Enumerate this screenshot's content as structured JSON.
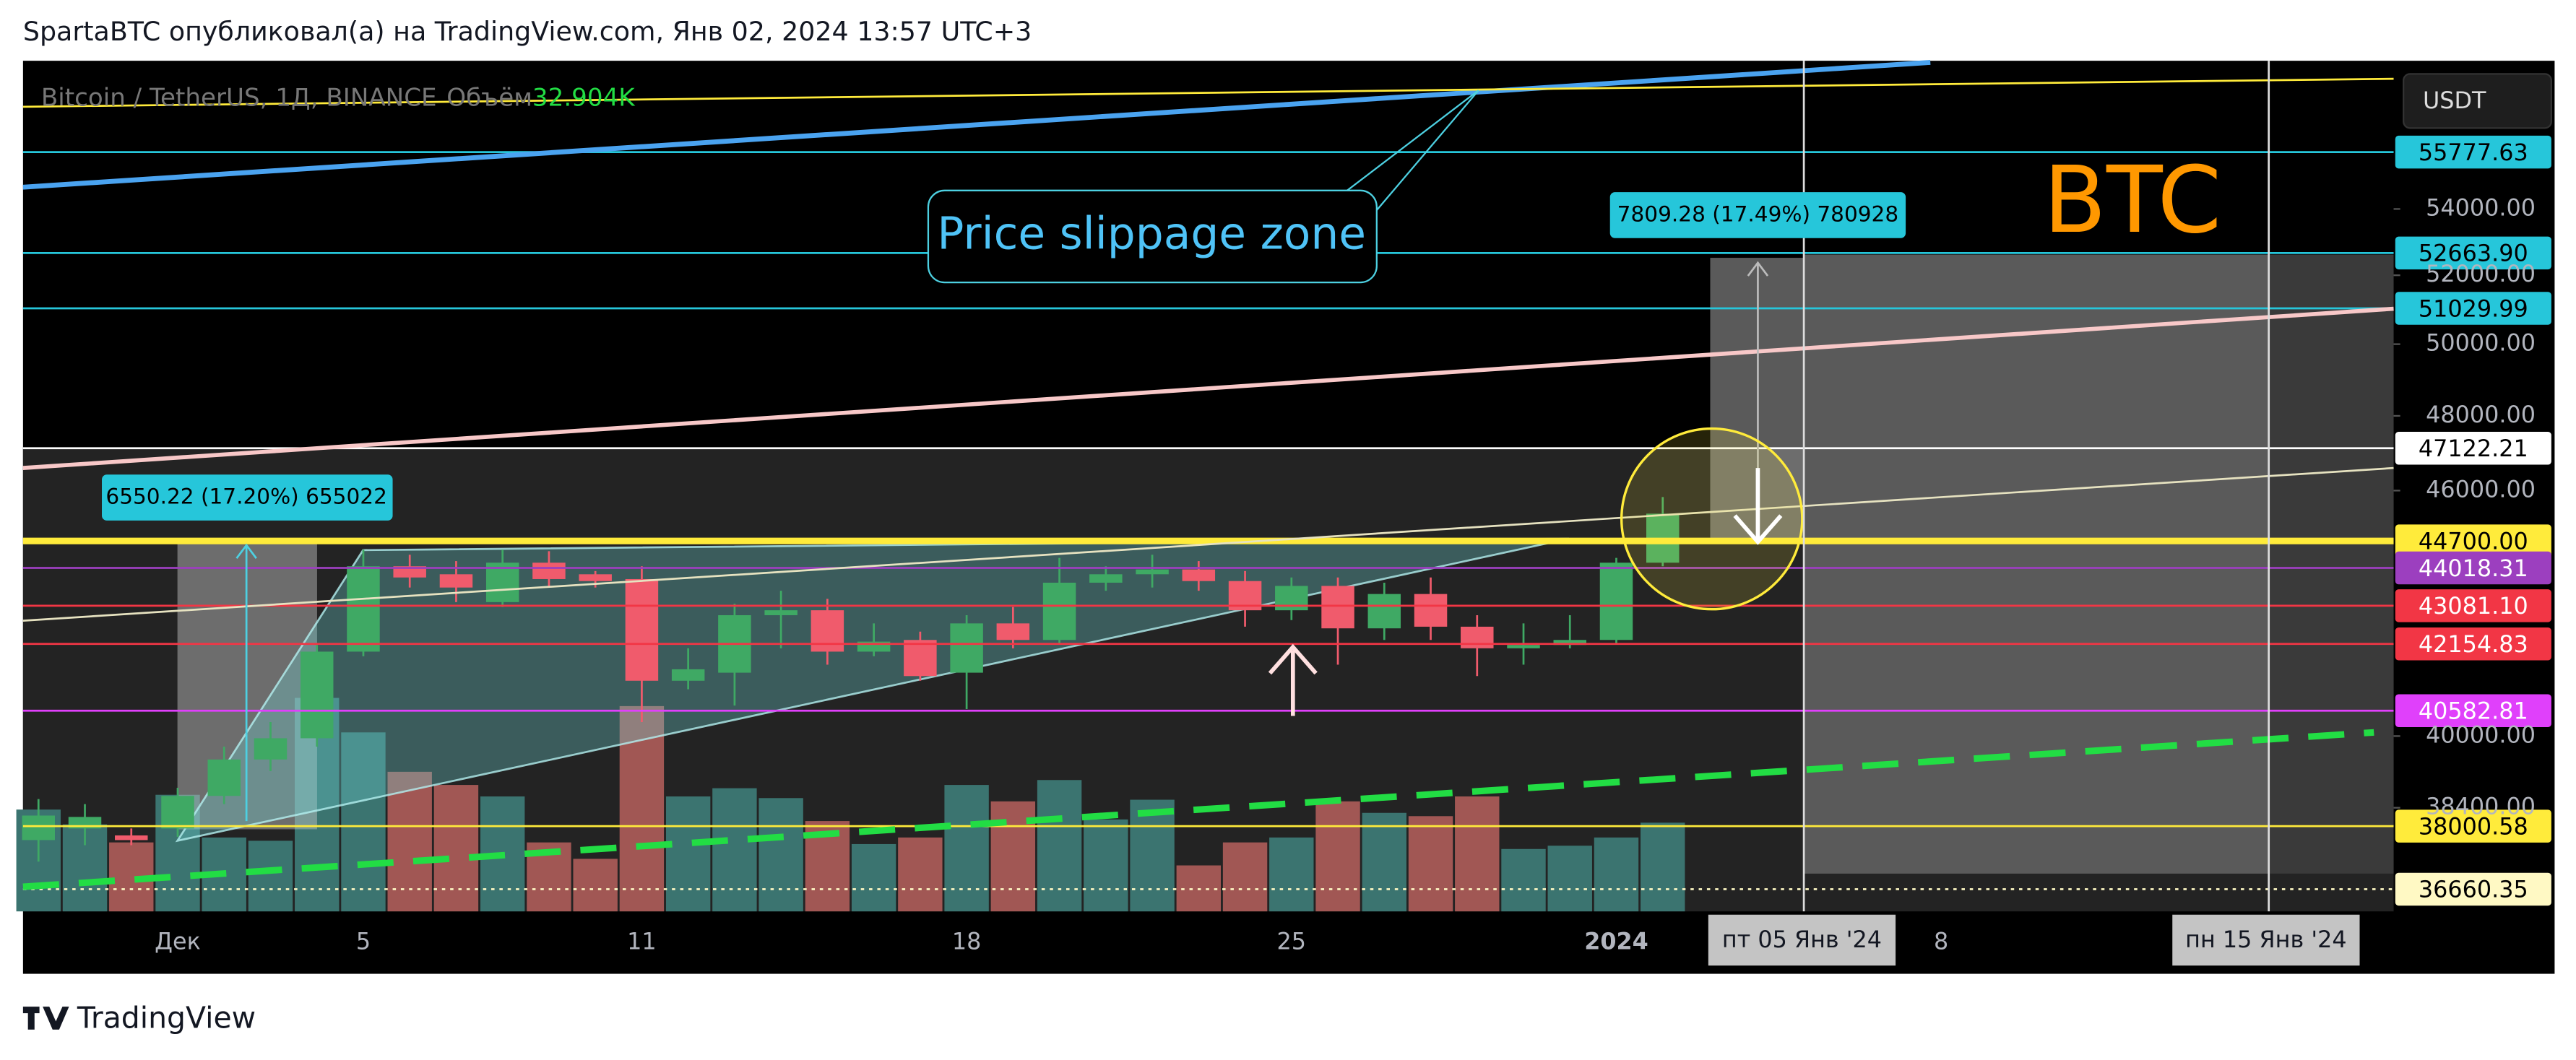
{
  "header": "SpartaBTC опубликовал(а) на TradingView.com, Янв 02, 2024 13:57 UTC+3",
  "brand": "TradingView",
  "currency": "USDT",
  "annotations": [
    {
      "text": "Price slippage zone"
    },
    {
      "text": "BTC"
    },
    {
      "text": "6550.22 (17.20%) 655022"
    },
    {
      "text": "7809.28 (17.49%) 780928"
    }
  ],
  "chart_data": {
    "type": "candlestick",
    "title": "Bitcoin / TetherUS, 1Д, BINANCE",
    "log_scale": true,
    "grid": false,
    "up_color": "#3fa964",
    "down_color": "#f05b6c",
    "x": [
      "2023-11-28",
      "2023-11-29",
      "2023-11-30",
      "2023-12-01",
      "2023-12-02",
      "2023-12-03",
      "2023-12-04",
      "2023-12-05",
      "2023-12-06",
      "2023-12-07",
      "2023-12-08",
      "2023-12-09",
      "2023-12-10",
      "2023-12-11",
      "2023-12-12",
      "2023-12-13",
      "2023-12-14",
      "2023-12-15",
      "2023-12-16",
      "2023-12-17",
      "2023-12-18",
      "2023-12-19",
      "2023-12-20",
      "2023-12-21",
      "2023-12-22",
      "2023-12-23",
      "2023-12-24",
      "2023-12-25",
      "2023-12-26",
      "2023-12-27",
      "2023-12-28",
      "2023-12-29",
      "2023-12-30",
      "2023-12-31",
      "2024-01-01",
      "2024-01-02"
    ],
    "open": [
      37700,
      37950,
      37800,
      37950,
      38660,
      39470,
      39950,
      41970,
      44060,
      43860,
      43170,
      44150,
      43860,
      43740,
      41280,
      41470,
      42850,
      42970,
      41970,
      42250,
      41470,
      42650,
      42250,
      43650,
      43860,
      43980,
      43690,
      42970,
      43570,
      42530,
      43370,
      42570,
      42050,
      42130,
      42250,
      44150
    ],
    "high": [
      38590,
      38480,
      37950,
      38840,
      39760,
      40320,
      42130,
      44480,
      44350,
      44190,
      44480,
      44440,
      43940,
      44060,
      42050,
      43130,
      43450,
      43250,
      42650,
      42450,
      42850,
      43050,
      44270,
      44060,
      44350,
      44190,
      43940,
      43780,
      43780,
      43650,
      43780,
      42850,
      42650,
      42850,
      44270,
      45830
    ],
    "low": [
      37240,
      37590,
      37590,
      37770,
      38480,
      39210,
      39760,
      41860,
      43530,
      43170,
      43050,
      43530,
      43530,
      40320,
      41080,
      40700,
      42050,
      41660,
      41860,
      41280,
      40620,
      42050,
      42170,
      43450,
      43530,
      43450,
      42570,
      42730,
      41660,
      42250,
      42250,
      41390,
      41660,
      42050,
      42170,
      44060
    ],
    "close": [
      38230,
      38200,
      37700,
      38660,
      39470,
      39950,
      41970,
      44060,
      43780,
      43530,
      44150,
      43740,
      43690,
      41280,
      41550,
      42850,
      42970,
      41970,
      42210,
      41390,
      42650,
      42250,
      43650,
      43860,
      43980,
      43690,
      42970,
      43570,
      42530,
      43370,
      42570,
      42050,
      42130,
      42250,
      44150,
      45400
    ],
    "volume": {
      "name": "Объём",
      "up_color": "#3b7470",
      "down_color": "#a15754",
      "values": [
        37760,
        32280,
        25580,
        43240,
        27410,
        26190,
        79170,
        66380,
        51770,
        46890,
        42630,
        25580,
        19490,
        76130,
        42630,
        45680,
        42020,
        33500,
        24970,
        27410,
        46890,
        40800,
        48720,
        34100,
        41410,
        17050,
        25580,
        27410,
        40800,
        36540,
        35320,
        42630,
        23140,
        24360,
        27410,
        32904
      ],
      "value_labels": [
        null,
        null,
        null,
        null,
        null,
        null,
        null,
        null,
        null,
        null,
        null,
        null,
        null,
        null,
        null,
        null,
        null,
        null,
        null,
        null,
        null,
        null,
        null,
        null,
        null,
        null,
        null,
        null,
        null,
        null,
        null,
        null,
        null,
        null,
        null,
        "32.904K"
      ]
    },
    "xlim": [
      "2023-11-27T16:00Z",
      "2024-01-17T18:00Z"
    ],
    "ylim": [
      36200,
      58700
    ],
    "xticks": [
      {
        "value": "2023-12-01",
        "label": "Дек"
      },
      {
        "value": "2023-12-05",
        "label": "5"
      },
      {
        "value": "2023-12-11",
        "label": "11"
      },
      {
        "value": "2023-12-18",
        "label": "18"
      },
      {
        "value": "2023-12-25",
        "label": "25"
      },
      {
        "value": "2024-01-01",
        "label": "2024"
      },
      {
        "value": "2024-01-08",
        "label": "8"
      }
    ],
    "markers": [
      {
        "value": "2024-01-05",
        "label": "пт 05 Янв '24"
      },
      {
        "value": "2024-01-15",
        "label": "пн 15 Янв '24"
      }
    ],
    "yticks": [
      {
        "value": 38400,
        "label": "38400.00"
      },
      {
        "value": 40000,
        "label": "40000.00"
      },
      {
        "value": 46000,
        "label": "46000.00"
      },
      {
        "value": 48000,
        "label": "48000.00"
      },
      {
        "value": 50000,
        "label": "50000.00"
      },
      {
        "value": 52000,
        "label": "52000.00"
      },
      {
        "value": 54000,
        "label": "54000.00"
      }
    ],
    "levels": [
      {
        "value": 55777.63,
        "label": "55777.63",
        "color": "#26c6da",
        "text_color": "#000000"
      },
      {
        "value": 52663.9,
        "label": "52663.90",
        "color": "#26c6da",
        "text_color": "#000000"
      },
      {
        "value": 51029.99,
        "label": "51029.99",
        "color": "#26c6da",
        "text_color": "#000000"
      },
      {
        "value": 47122.21,
        "label": "47122.21",
        "color": "#ffffff",
        "text_color": "#000000"
      },
      {
        "value": 44700,
        "label": "44700.00",
        "color": "#ffeb3b",
        "text_color": "#000000"
      },
      {
        "value": 44018.31,
        "label": "44018.31",
        "color": "#9c3fbf",
        "text_color": "#ffffff"
      },
      {
        "value": 43081.1,
        "label": "43081.10",
        "color": "#f23645",
        "text_color": "#ffffff"
      },
      {
        "value": 42154.83,
        "label": "42154.83",
        "color": "#f23645",
        "text_color": "#ffffff"
      },
      {
        "value": 40582.81,
        "label": "40582.81",
        "color": "#e040fb",
        "text_color": "#ffffff"
      },
      {
        "value": 38000.58,
        "label": "38000.58",
        "color": "#ffeb3b",
        "text_color": "#000000"
      },
      {
        "value": 36660.35,
        "label": "36660.35",
        "color": "#fff9c4",
        "text_color": "#000000"
      }
    ]
  }
}
